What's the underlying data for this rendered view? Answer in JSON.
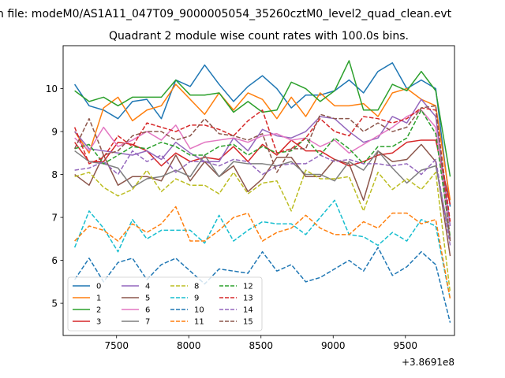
{
  "chart_data": {
    "type": "line",
    "suptitle": "n file: modeM0/AS1A11_047T09_9000005054_35260cztM0_level2_quad_clean.evt",
    "title": "Quadrant 2 module wise count rates with 100.0s bins.",
    "xlabel": "",
    "ylabel": "",
    "x_offset_label": "+3.8691e8",
    "xlim": [
      7130,
      9840
    ],
    "ylim": [
      4.25,
      11.0
    ],
    "x_ticks": [
      7500,
      8000,
      8500,
      9000,
      9500
    ],
    "y_ticks": [
      5,
      6,
      7,
      8,
      9,
      10
    ],
    "x": [
      7210,
      7310,
      7410,
      7510,
      7610,
      7710,
      7810,
      7910,
      8010,
      8110,
      8210,
      8310,
      8410,
      8510,
      8610,
      8710,
      8810,
      8910,
      9010,
      9110,
      9210,
      9310,
      9410,
      9510,
      9610,
      9710,
      9810
    ],
    "legend": {
      "location": "lower-left",
      "columns": 4
    },
    "series": [
      {
        "name": "0",
        "color": "#1f77b4",
        "dash": "solid",
        "values": [
          10.1,
          9.6,
          9.5,
          9.3,
          9.7,
          9.75,
          9.3,
          10.2,
          10.05,
          10.55,
          10.1,
          9.7,
          10.05,
          10.3,
          10.0,
          9.55,
          9.85,
          9.85,
          9.95,
          10.2,
          9.9,
          10.4,
          10.6,
          10.0,
          10.2,
          10.0,
          7.25
        ]
      },
      {
        "name": "1",
        "color": "#ff7f0e",
        "dash": "solid",
        "values": [
          9.0,
          8.5,
          9.55,
          9.8,
          9.25,
          9.5,
          9.6,
          10.1,
          9.75,
          9.4,
          9.9,
          9.5,
          9.9,
          9.75,
          9.3,
          9.8,
          9.35,
          9.9,
          9.6,
          9.6,
          9.65,
          9.35,
          9.9,
          10.0,
          9.75,
          9.6,
          7.4
        ]
      },
      {
        "name": "2",
        "color": "#2ca02c",
        "dash": "solid",
        "values": [
          9.95,
          9.7,
          9.8,
          9.6,
          9.8,
          9.8,
          9.8,
          10.2,
          9.85,
          9.85,
          9.9,
          9.45,
          9.7,
          9.45,
          9.5,
          10.15,
          10.0,
          9.7,
          9.95,
          10.65,
          9.5,
          9.5,
          10.1,
          9.95,
          10.4,
          9.95,
          7.95
        ]
      },
      {
        "name": "3",
        "color": "#d62728",
        "dash": "solid",
        "values": [
          8.75,
          8.3,
          8.3,
          8.75,
          8.7,
          8.55,
          8.2,
          8.5,
          8.3,
          8.4,
          8.35,
          8.65,
          8.3,
          8.7,
          8.45,
          8.8,
          8.55,
          8.55,
          8.35,
          8.2,
          8.3,
          8.45,
          8.5,
          8.75,
          8.8,
          8.8,
          7.3
        ]
      },
      {
        "name": "4",
        "color": "#9467bd",
        "dash": "solid",
        "values": [
          9.0,
          8.6,
          8.55,
          8.5,
          8.45,
          8.55,
          8.35,
          8.75,
          8.5,
          8.3,
          8.3,
          8.85,
          8.55,
          9.05,
          8.9,
          8.85,
          9.0,
          9.35,
          9.3,
          9.0,
          8.75,
          8.85,
          9.35,
          9.2,
          9.75,
          9.35,
          6.8
        ]
      },
      {
        "name": "5",
        "color": "#8c564b",
        "dash": "solid",
        "values": [
          8.0,
          7.75,
          8.45,
          7.75,
          7.95,
          7.95,
          7.85,
          8.45,
          7.85,
          8.3,
          7.95,
          8.2,
          7.6,
          7.9,
          8.4,
          8.4,
          7.95,
          7.95,
          8.35,
          8.25,
          7.4,
          8.55,
          8.3,
          8.35,
          8.7,
          8.3,
          6.1
        ]
      },
      {
        "name": "6",
        "color": "#e377c2",
        "dash": "solid",
        "values": [
          8.85,
          8.55,
          9.1,
          8.65,
          8.8,
          9.0,
          8.8,
          9.15,
          8.6,
          8.75,
          8.8,
          8.85,
          8.75,
          8.9,
          8.95,
          8.8,
          8.85,
          8.65,
          8.8,
          8.5,
          8.7,
          8.9,
          9.1,
          9.35,
          9.5,
          9.1,
          6.5
        ]
      },
      {
        "name": "7",
        "color": "#7f7f7f",
        "dash": "solid",
        "values": [
          8.55,
          8.3,
          8.25,
          8.15,
          7.7,
          7.9,
          7.95,
          8.1,
          7.95,
          8.45,
          7.95,
          8.3,
          8.25,
          8.25,
          8.2,
          8.3,
          8.0,
          8.0,
          7.85,
          8.3,
          8.1,
          8.55,
          8.15,
          7.8,
          8.1,
          8.2,
          6.5
        ]
      },
      {
        "name": "8",
        "color": "#bcbd22",
        "dash": "dash",
        "values": [
          7.95,
          8.05,
          7.7,
          7.5,
          7.65,
          8.1,
          7.6,
          7.9,
          7.75,
          7.75,
          7.55,
          8.05,
          7.55,
          7.8,
          7.85,
          7.15,
          8.1,
          7.9,
          7.9,
          7.95,
          7.15,
          8.05,
          7.65,
          7.9,
          7.65,
          8.05,
          5.25
        ]
      },
      {
        "name": "9",
        "color": "#17becf",
        "dash": "dash",
        "values": [
          6.3,
          7.15,
          6.75,
          6.2,
          6.95,
          6.5,
          6.7,
          6.7,
          6.7,
          6.4,
          7.05,
          6.45,
          6.7,
          6.9,
          6.85,
          6.85,
          6.6,
          7.0,
          7.4,
          6.6,
          6.55,
          6.35,
          6.65,
          6.45,
          6.95,
          6.8,
          5.1
        ]
      },
      {
        "name": "10",
        "color": "#1f77b4",
        "dash": "dash",
        "values": [
          5.55,
          6.05,
          5.5,
          5.95,
          6.05,
          5.55,
          5.9,
          6.05,
          5.75,
          5.45,
          5.8,
          5.75,
          5.7,
          6.2,
          5.75,
          5.9,
          5.5,
          5.6,
          5.8,
          6.0,
          5.75,
          6.3,
          5.65,
          5.85,
          6.2,
          5.9,
          4.55
        ]
      },
      {
        "name": "11",
        "color": "#ff7f0e",
        "dash": "dash",
        "values": [
          6.45,
          6.8,
          6.7,
          6.45,
          6.85,
          6.65,
          6.85,
          7.25,
          6.45,
          6.45,
          6.7,
          7.0,
          7.1,
          6.45,
          6.65,
          6.75,
          7.05,
          6.75,
          6.6,
          6.6,
          6.9,
          6.75,
          7.1,
          7.1,
          6.85,
          6.95,
          5.1
        ]
      },
      {
        "name": "12",
        "color": "#2ca02c",
        "dash": "dash",
        "values": [
          8.6,
          8.7,
          8.25,
          8.45,
          8.65,
          8.6,
          8.75,
          8.65,
          8.45,
          8.45,
          8.65,
          8.7,
          8.45,
          8.65,
          8.5,
          8.55,
          8.85,
          8.45,
          8.85,
          8.6,
          8.25,
          8.65,
          8.65,
          8.85,
          9.5,
          8.95,
          6.55
        ]
      },
      {
        "name": "13",
        "color": "#d62728",
        "dash": "dash",
        "values": [
          9.1,
          8.25,
          8.4,
          8.9,
          8.65,
          9.2,
          9.1,
          9.0,
          9.15,
          9.15,
          9.05,
          8.9,
          9.25,
          9.5,
          8.5,
          8.6,
          8.85,
          9.3,
          9.0,
          8.9,
          9.35,
          9.3,
          9.2,
          9.3,
          9.55,
          9.5,
          6.9
        ]
      },
      {
        "name": "14",
        "color": "#9467bd",
        "dash": "dash",
        "values": [
          8.1,
          8.15,
          8.3,
          8.0,
          8.55,
          8.3,
          8.45,
          8.05,
          8.3,
          8.3,
          8.2,
          8.35,
          8.3,
          8.0,
          8.2,
          8.25,
          8.25,
          8.45,
          8.3,
          8.35,
          8.25,
          8.25,
          8.2,
          8.25,
          8.0,
          8.35,
          6.35
        ]
      },
      {
        "name": "15",
        "color": "#8c564b",
        "dash": "dash",
        "values": [
          8.6,
          9.3,
          8.45,
          8.55,
          8.9,
          9.0,
          9.0,
          8.8,
          8.9,
          9.3,
          8.95,
          8.9,
          8.8,
          8.95,
          8.05,
          8.6,
          8.6,
          9.4,
          9.3,
          9.3,
          9.0,
          9.2,
          9.0,
          9.1,
          9.55,
          9.6,
          6.45
        ]
      }
    ]
  }
}
